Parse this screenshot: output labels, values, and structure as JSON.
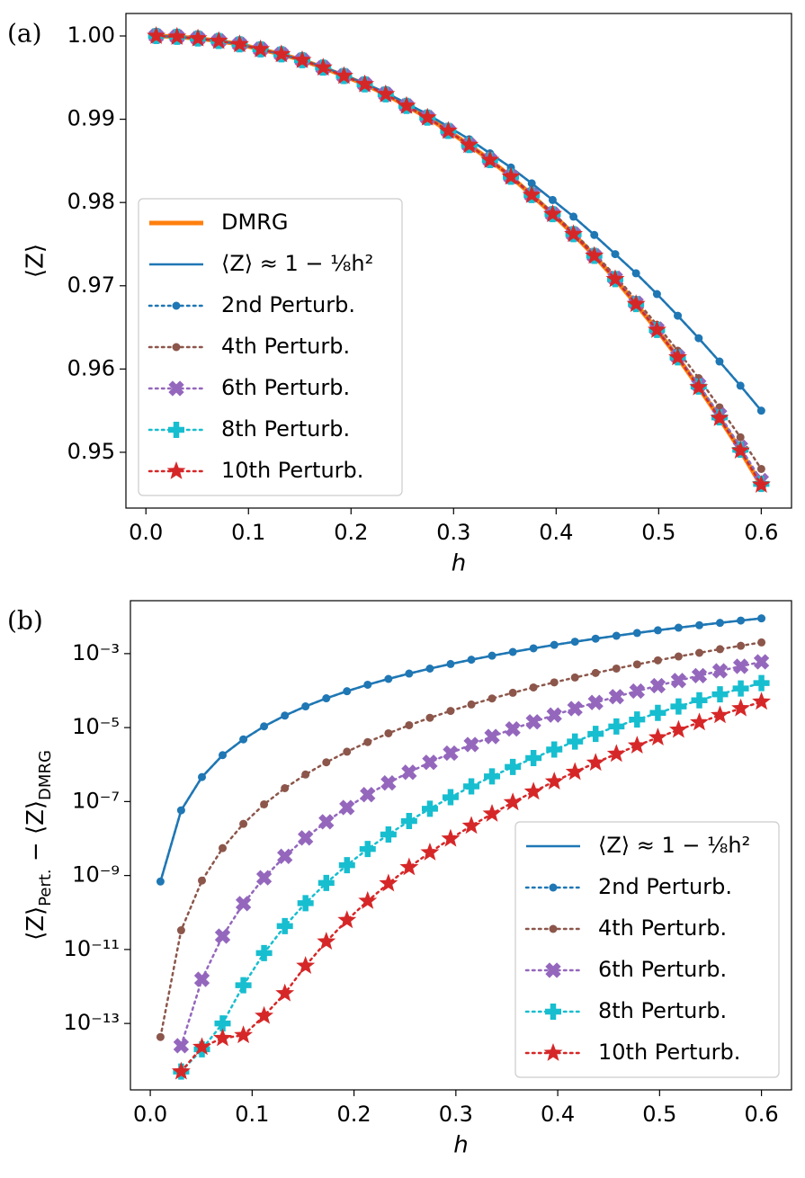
{
  "chart_data": [
    {
      "type": "line",
      "panel": "(a)",
      "xlabel": "h",
      "ylabel": "⟨Z⟩",
      "legend": "lower left",
      "xlim": [
        -0.0195,
        0.6295
      ],
      "ylim": [
        0.9433,
        1.0027
      ],
      "xticks": [
        {
          "value": 0,
          "label": "0.0"
        },
        0.1,
        0.2,
        0.3,
        0.4,
        0.5,
        0.6
      ],
      "yticks": [
        0.95,
        0.96,
        0.97,
        0.98,
        0.99,
        {
          "value": 1,
          "label": "1.00"
        }
      ],
      "x": [
        0.01,
        0.0303,
        0.0507,
        0.071,
        0.0914,
        0.1117,
        0.1321,
        0.1524,
        0.1728,
        0.1931,
        0.2134,
        0.2338,
        0.2541,
        0.2745,
        0.2948,
        0.3152,
        0.3355,
        0.3559,
        0.3762,
        0.3966,
        0.4169,
        0.4372,
        0.4576,
        0.4779,
        0.4983,
        0.5186,
        0.539,
        0.5593,
        0.5797,
        0.6
      ],
      "series": [
        {
          "name": "DMRG",
          "color": "#ff7f0e",
          "linestyle": "solid",
          "linewidth": 5,
          "marker": "none",
          "values": [
            1.0,
            0.9999,
            0.9997,
            0.9994,
            0.999,
            0.9984,
            0.9978,
            0.9971,
            0.9962,
            0.9952,
            0.9942,
            0.993,
            0.9916,
            0.9902,
            0.9886,
            0.9869,
            0.9851,
            0.9831,
            0.9809,
            0.9786,
            0.9762,
            0.9736,
            0.9708,
            0.9678,
            0.9647,
            0.9614,
            0.9578,
            0.9541,
            0.9502,
            0.946
          ]
        },
        {
          "name": "⟨Z⟩ ≈ 1 − ⅛h²",
          "color": "#1f77b4",
          "linestyle": "solid",
          "linewidth": 2.5,
          "marker": "none",
          "values": [
            1.0,
            0.9999,
            0.9997,
            0.9994,
            0.999,
            0.9984,
            0.9978,
            0.9971,
            0.9963,
            0.9953,
            0.9943,
            0.9932,
            0.9919,
            0.9906,
            0.9891,
            0.9876,
            0.9859,
            0.9842,
            0.9823,
            0.9803,
            0.9783,
            0.9761,
            0.9738,
            0.9715,
            0.969,
            0.9664,
            0.9637,
            0.9609,
            0.958,
            0.955
          ]
        },
        {
          "name": "2nd Perturb.",
          "color": "#1f77b4",
          "linestyle": "dotted",
          "linewidth": 2.5,
          "marker": "dot",
          "values": [
            1.0,
            0.9999,
            0.9997,
            0.9994,
            0.999,
            0.9984,
            0.9978,
            0.9971,
            0.9963,
            0.9953,
            0.9943,
            0.9932,
            0.9919,
            0.9906,
            0.9891,
            0.9876,
            0.9859,
            0.9842,
            0.9823,
            0.9803,
            0.9783,
            0.9761,
            0.9738,
            0.9715,
            0.969,
            0.9664,
            0.9637,
            0.9609,
            0.958,
            0.955
          ]
        },
        {
          "name": "4th Perturb.",
          "color": "#8c564b",
          "linestyle": "dotted",
          "linewidth": 2.5,
          "marker": "dot",
          "values": [
            1.0,
            0.9999,
            0.9997,
            0.9994,
            0.999,
            0.9984,
            0.9978,
            0.9971,
            0.9962,
            0.9952,
            0.9942,
            0.993,
            0.9916,
            0.9902,
            0.9886,
            0.9869,
            0.9851,
            0.9832,
            0.981,
            0.9788,
            0.9764,
            0.9739,
            0.9712,
            0.9683,
            0.9653,
            0.9622,
            0.9589,
            0.9554,
            0.9518,
            0.948
          ]
        },
        {
          "name": "6th Perturb.",
          "color": "#9467bd",
          "linestyle": "dotted",
          "linewidth": 2.5,
          "marker": "x",
          "values": [
            1.0,
            0.9999,
            0.9997,
            0.9994,
            0.999,
            0.9984,
            0.9978,
            0.9971,
            0.9962,
            0.9952,
            0.9942,
            0.993,
            0.9916,
            0.9902,
            0.9886,
            0.9869,
            0.9851,
            0.9831,
            0.9809,
            0.9786,
            0.9762,
            0.9736,
            0.9709,
            0.9679,
            0.9648,
            0.9615,
            0.9581,
            0.9545,
            0.9506,
            0.9466
          ]
        },
        {
          "name": "8th Perturb.",
          "color": "#17becf",
          "linestyle": "dotted",
          "linewidth": 2.5,
          "marker": "plus",
          "values": [
            1.0,
            0.9999,
            0.9997,
            0.9994,
            0.999,
            0.9984,
            0.9978,
            0.9971,
            0.9962,
            0.9952,
            0.9942,
            0.993,
            0.9916,
            0.9902,
            0.9886,
            0.9869,
            0.9851,
            0.9831,
            0.9809,
            0.9786,
            0.9762,
            0.9736,
            0.9708,
            0.9678,
            0.9647,
            0.9614,
            0.9579,
            0.9542,
            0.9503,
            0.9462
          ]
        },
        {
          "name": "10th Perturb.",
          "color": "#d62728",
          "linestyle": "dotted",
          "linewidth": 2.5,
          "marker": "star",
          "values": [
            1.0,
            0.9999,
            0.9997,
            0.9994,
            0.999,
            0.9984,
            0.9978,
            0.9971,
            0.9962,
            0.9952,
            0.9942,
            0.993,
            0.9916,
            0.9902,
            0.9886,
            0.9869,
            0.9851,
            0.9831,
            0.9809,
            0.9786,
            0.9762,
            0.9736,
            0.9708,
            0.9678,
            0.9647,
            0.9614,
            0.9578,
            0.9541,
            0.9502,
            0.9461
          ]
        }
      ]
    },
    {
      "type": "line",
      "panel": "(b)",
      "xlabel": "h",
      "ylabel": [
        "⟨Z⟩",
        "Pert.",
        " − ⟨Z⟩",
        "DMRG"
      ],
      "legend": "lower right",
      "yscale": "log",
      "xlim": [
        -0.0195,
        0.6295
      ],
      "ylim": [
        1.6e-15,
        0.027
      ],
      "xticks": [
        {
          "value": 0,
          "label": "0.0"
        },
        0.1,
        0.2,
        0.3,
        0.4,
        0.5,
        0.6
      ],
      "yticks": [
        {
          "value": 1e-13,
          "label": "10⁻¹³"
        },
        {
          "value": 1e-11,
          "label": "10⁻¹¹"
        },
        {
          "value": 1e-09,
          "label": "10⁻⁹"
        },
        {
          "value": 1e-07,
          "label": "10⁻⁷"
        },
        {
          "value": 1e-05,
          "label": "10⁻⁵"
        },
        {
          "value": 0.001,
          "label": "10⁻³"
        }
      ],
      "x": [
        0.01,
        0.0303,
        0.0507,
        0.071,
        0.0914,
        0.1117,
        0.1321,
        0.1524,
        0.1728,
        0.1931,
        0.2134,
        0.2338,
        0.2541,
        0.2745,
        0.2948,
        0.3152,
        0.3355,
        0.3559,
        0.3762,
        0.3966,
        0.4169,
        0.4372,
        0.4576,
        0.4779,
        0.4983,
        0.5186,
        0.539,
        0.5593,
        0.5797,
        0.6
      ],
      "series": [
        {
          "name": "⟨Z⟩ ≈ 1 − ⅛h²",
          "color": "#1f77b4",
          "linestyle": "solid",
          "linewidth": 2.5,
          "marker": "none",
          "values": [
            6.9e-10,
            5.8e-08,
            4.6e-07,
            1.8e-06,
            4.8e-06,
            1.08e-05,
            2.11e-05,
            3.75e-05,
            6.19e-05,
            9.65e-05,
            0.000144,
            0.000207,
            0.000289,
            0.000394,
            0.000524,
            0.000685,
            0.000879,
            0.00111,
            0.00139,
            0.00172,
            0.0021,
            0.00254,
            0.00304,
            0.00362,
            0.00428,
            0.00502,
            0.00586,
            0.00679,
            0.00784,
            0.00899
          ]
        },
        {
          "name": "2nd Perturb.",
          "color": "#1f77b4",
          "linestyle": "dotted",
          "linewidth": 2.5,
          "marker": "dot",
          "values": [
            6.9e-10,
            5.8e-08,
            4.6e-07,
            1.8e-06,
            4.8e-06,
            1.08e-05,
            2.11e-05,
            3.75e-05,
            6.19e-05,
            9.65e-05,
            0.000144,
            0.000207,
            0.000289,
            0.000394,
            0.000524,
            0.000685,
            0.000879,
            0.00111,
            0.00139,
            0.00172,
            0.0021,
            0.00254,
            0.00304,
            0.00362,
            0.00428,
            0.00502,
            0.00586,
            0.00679,
            0.00784,
            0.00899
          ]
        },
        {
          "name": "4th Perturb.",
          "color": "#8c564b",
          "linestyle": "dotted",
          "linewidth": 2.5,
          "marker": "dot",
          "values": [
            4.3e-14,
            3.3e-11,
            7.3e-10,
            5.5e-09,
            2.5e-08,
            8.4e-08,
            2.3e-07,
            5.4e-07,
            1.15e-06,
            2.23e-06,
            4.06e-06,
            7e-06,
            1.16e-05,
            1.84e-05,
            2.82e-05,
            4.22e-05,
            6.13e-05,
            8.74e-05,
            0.000122,
            0.000167,
            0.000226,
            0.0003,
            0.000395,
            0.000512,
            0.000658,
            0.000837,
            0.00105,
            0.00132,
            0.00163,
            0.00201
          ]
        },
        {
          "name": "6th Perturb.",
          "color": "#9467bd",
          "linestyle": "dotted",
          "linewidth": 2.5,
          "marker": "x",
          "values": [
            null,
            2.5e-14,
            1.56e-12,
            2.3e-11,
            1.74e-10,
            8.7e-10,
            3.3e-09,
            1.04e-08,
            2.84e-08,
            6.9e-08,
            1.54e-07,
            3.19e-07,
            6.2e-07,
            1.15e-06,
            2.04e-06,
            3.48e-06,
            5.73e-06,
            9.19e-06,
            1.43e-05,
            2.18e-05,
            3.26e-05,
            4.77e-05,
            6.86e-05,
            9.71e-05,
            0.000136,
            0.000187,
            0.000254,
            0.000342,
            0.000455,
            0.0006
          ]
        },
        {
          "name": "8th Perturb.",
          "color": "#17becf",
          "linestyle": "dotted",
          "linewidth": 2.5,
          "marker": "plus",
          "values": [
            null,
            5e-15,
            2e-14,
            1e-13,
            1.08e-12,
            8e-12,
            4.3e-11,
            1.79e-10,
            6.3e-10,
            1.91e-09,
            5.2e-09,
            1.29e-08,
            2.97e-08,
            6.4e-08,
            1.31e-07,
            2.57e-07,
            4.79e-07,
            8.64e-07,
            1.5e-06,
            2.55e-06,
            4.2e-06,
            6.76e-06,
            1.07e-05,
            1.65e-05,
            2.5e-05,
            3.73e-05,
            5.49e-05,
            7.94e-05,
            0.000114,
            0.00016
          ]
        },
        {
          "name": "10th Perturb.",
          "color": "#d62728",
          "linestyle": "dotted",
          "linewidth": 2.5,
          "marker": "star",
          "values": [
            null,
            5e-15,
            2.3e-14,
            4e-14,
            4.8e-14,
            1.6e-13,
            6.5e-13,
            3.6e-12,
            1.63e-11,
            6.2e-11,
            2.05e-10,
            6.1e-10,
            1.67e-09,
            4.2e-09,
            9.9e-09,
            2.21e-08,
            4.68e-08,
            9.5e-08,
            1.85e-07,
            3.48e-07,
            6.3e-07,
            1.12e-06,
            1.94e-06,
            3.26e-06,
            5.39e-06,
            8.7e-06,
            1.38e-05,
            2.16e-05,
            3.31e-05,
            5e-05
          ]
        }
      ]
    }
  ]
}
